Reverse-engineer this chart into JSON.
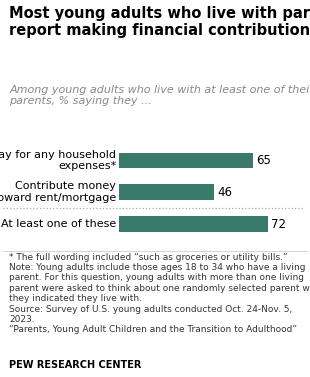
{
  "title": "Most young adults who live with parents\nreport making financial contributions",
  "subtitle": "Among young adults who live with at least one of their\nparents, % saying they ...",
  "categories": [
    "Pay for any household\nexpenses*",
    "Contribute money\ntoward rent/mortgage",
    "At least one of these"
  ],
  "values": [
    65,
    46,
    72
  ],
  "bar_color": "#3a7a6a",
  "xlim": [
    0,
    85
  ],
  "bar_height": 0.5,
  "title_fontsize": 10.5,
  "subtitle_fontsize": 8.0,
  "label_fontsize": 8.0,
  "value_fontsize": 8.5,
  "footnote_fontsize": 6.5,
  "source_fontsize": 7.0,
  "footnote": "* The full wording included “such as groceries or utility bills.”\nNote: Young adults include those ages 18 to 34 who have a living\nparent. For this question, young adults with more than one living\nparent were asked to think about one randomly selected parent who\nthey indicated they live with.\nSource: Survey of U.S. young adults conducted Oct. 24-Nov. 5,\n2023.\n“Parents, Young Adult Children and the Transition to Adulthood”",
  "source_label": "PEW RESEARCH CENTER"
}
